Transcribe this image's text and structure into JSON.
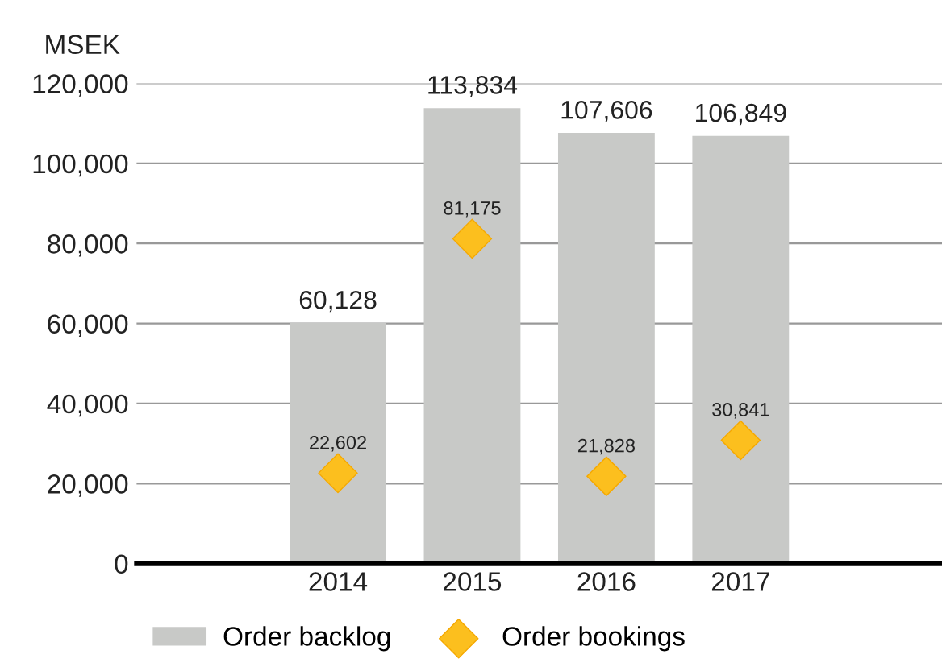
{
  "chart_data": {
    "type": "bar",
    "ylabel": "MSEK",
    "categories": [
      null,
      "2014",
      "2015",
      "2016",
      "2017",
      null
    ],
    "series": [
      {
        "name": "Order backlog",
        "color": "#c8c9c7",
        "values": [
          null,
          60128,
          113834,
          107606,
          106849,
          null
        ],
        "value_labels": [
          null,
          "60,128",
          "113,834",
          "107,606",
          "106,849",
          null
        ]
      },
      {
        "name": "Order bookings",
        "type": "scatter",
        "marker": "diamond",
        "color": "#fcbf1e",
        "values": [
          null,
          22602,
          81175,
          21828,
          30841,
          null
        ],
        "value_labels": [
          null,
          "22,602",
          "81,175",
          "21,828",
          "30,841",
          null
        ]
      }
    ],
    "ylim": [
      0,
      120000
    ],
    "yticks": [
      {
        "value": 0,
        "label": "0"
      },
      {
        "value": 20000,
        "label": "20,000"
      },
      {
        "value": 40000,
        "label": "40,000"
      },
      {
        "value": 60000,
        "label": "60,000"
      },
      {
        "value": 80000,
        "label": "80,000"
      },
      {
        "value": 100000,
        "label": "100,000"
      },
      {
        "value": 120000,
        "label": "120,000"
      }
    ],
    "grid": "y",
    "legend": "bottom"
  }
}
